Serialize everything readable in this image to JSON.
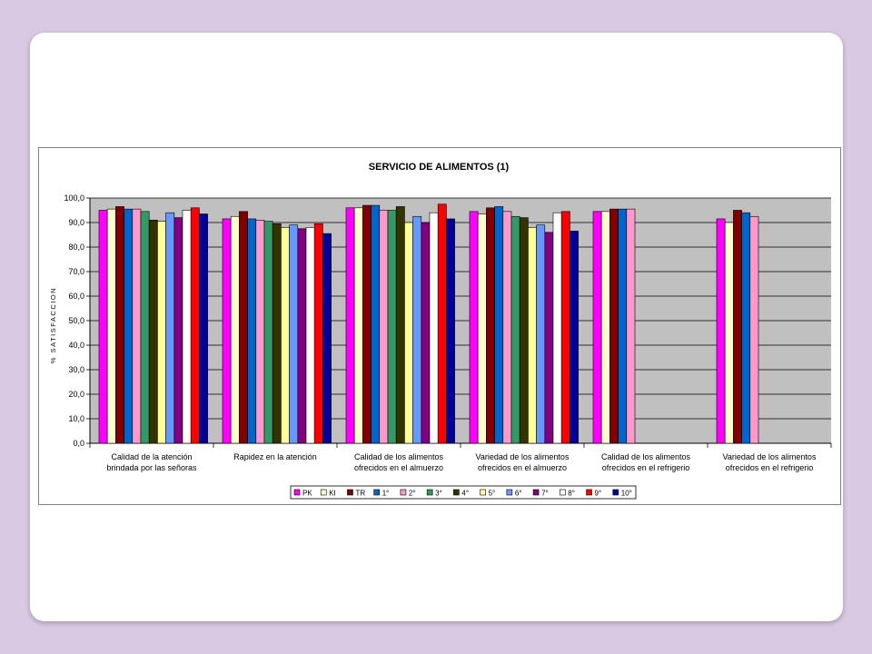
{
  "chart_data": {
    "type": "bar",
    "title": "SERVICIO DE ALIMENTOS (1)",
    "ylabel": "% SATISFACCION",
    "ylim": [
      0,
      100
    ],
    "yticks": [
      "0,0",
      "10,0",
      "20,0",
      "30,0",
      "40,0",
      "50,0",
      "60,0",
      "70,0",
      "80,0",
      "90,0",
      "100,0"
    ],
    "grid": true,
    "legend_position": "bottom",
    "plot_background": "#c0c0c0",
    "categories": [
      [
        "Calidad de la atención",
        "brindada por las señoras"
      ],
      [
        "Rapidez en la atención"
      ],
      [
        "Calidad de los alimentos",
        "ofrecidos en el almuerzo"
      ],
      [
        "Variedad de los alimentos",
        "ofrecidos en el almuerzo"
      ],
      [
        "Calidad de los alimentos",
        "ofrecidos en el refrigerio"
      ],
      [
        "Variedad de los alimentos",
        "ofrecidos en el refrigerio"
      ]
    ],
    "series": [
      {
        "name": "PK",
        "color": "#ff00ff",
        "values": [
          95.0,
          91.5,
          96.0,
          94.5,
          94.5,
          91.5
        ]
      },
      {
        "name": "KI",
        "color": "#ffffcc",
        "values": [
          95.5,
          92.5,
          96.0,
          93.5,
          94.5,
          90.0
        ]
      },
      {
        "name": "TR",
        "color": "#800000",
        "values": [
          96.5,
          94.5,
          97.0,
          96.0,
          95.5,
          95.0
        ]
      },
      {
        "name": "1°",
        "color": "#0066cc",
        "values": [
          95.5,
          91.5,
          97.0,
          96.5,
          95.5,
          94.0
        ]
      },
      {
        "name": "2°",
        "color": "#ff99cc",
        "values": [
          95.5,
          91.0,
          95.0,
          94.5,
          95.5,
          92.5
        ]
      },
      {
        "name": "3°",
        "color": "#339966",
        "values": [
          94.5,
          90.5,
          95.0,
          92.5,
          null,
          null
        ]
      },
      {
        "name": "4°",
        "color": "#333300",
        "values": [
          91.0,
          89.5,
          96.5,
          92.0,
          null,
          null
        ]
      },
      {
        "name": "5°",
        "color": "#ffff99",
        "values": [
          90.5,
          88.0,
          90.0,
          88.0,
          null,
          null
        ]
      },
      {
        "name": "6°",
        "color": "#6699ff",
        "values": [
          94.0,
          89.0,
          92.5,
          89.0,
          null,
          null
        ]
      },
      {
        "name": "7°",
        "color": "#800080",
        "values": [
          92.0,
          87.5,
          90.0,
          86.0,
          null,
          null
        ]
      },
      {
        "name": "8°",
        "color": "#ffffff",
        "values": [
          95.0,
          88.0,
          94.0,
          94.0,
          null,
          null
        ]
      },
      {
        "name": "9°",
        "color": "#ff0000",
        "values": [
          96.0,
          89.5,
          97.5,
          94.5,
          null,
          null
        ]
      },
      {
        "name": "10°",
        "color": "#000099",
        "values": [
          93.5,
          85.5,
          91.5,
          86.5,
          null,
          null
        ]
      }
    ]
  }
}
